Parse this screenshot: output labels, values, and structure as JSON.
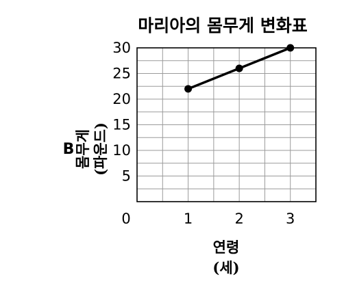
{
  "panel_label": "B",
  "chart_data": {
    "type": "line",
    "title": "마리아의 몸무게 변화표",
    "xlabel": [
      "연령",
      "(세)"
    ],
    "ylabel": [
      "몸무게",
      "(파운드)"
    ],
    "x_ticks": [
      0,
      1,
      2,
      3
    ],
    "y_ticks": [
      5,
      10,
      15,
      20,
      25,
      30
    ],
    "xlim": [
      0,
      3.5
    ],
    "ylim": [
      0,
      30
    ],
    "grid": true,
    "x": [
      1,
      2,
      3
    ],
    "values": [
      22,
      26,
      30
    ],
    "colors": {
      "line": "#000000",
      "grid": "#9a9a9a"
    }
  }
}
